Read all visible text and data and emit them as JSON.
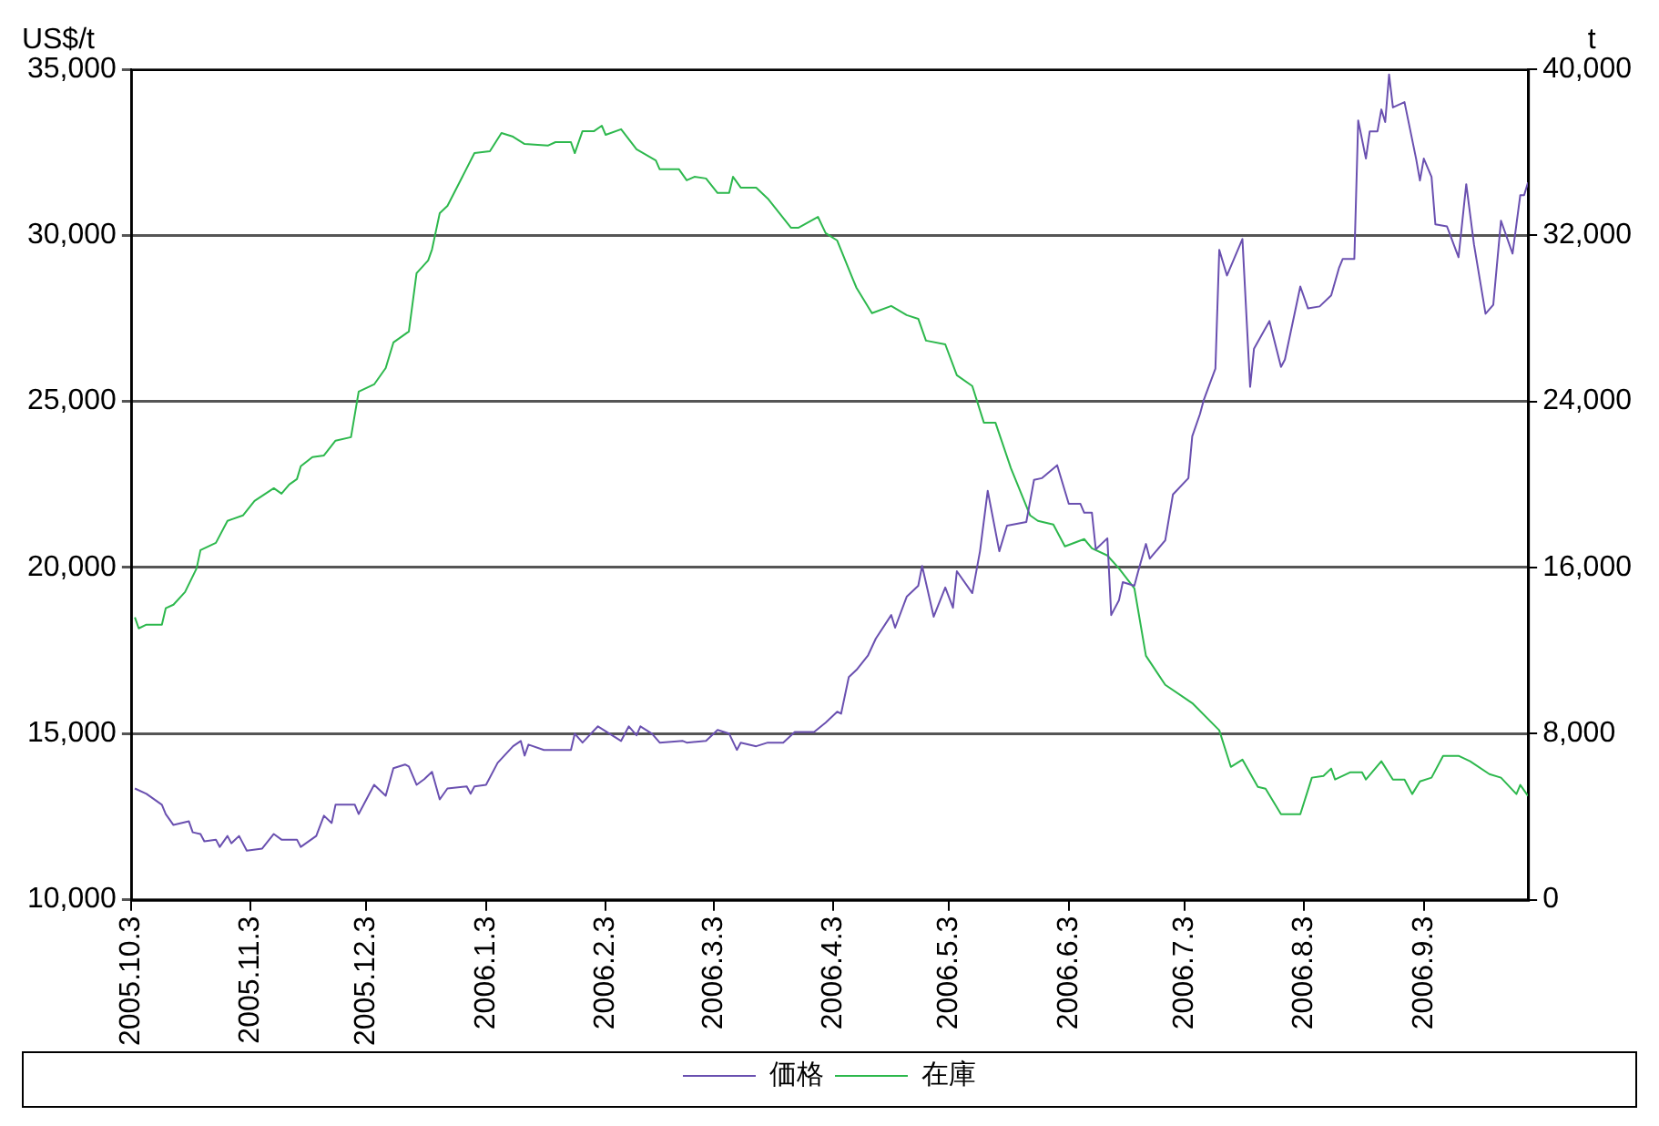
{
  "chart_data": {
    "type": "line",
    "ylabel": "US$/t",
    "y2label": "t",
    "xlim": [
      "2005-10-03",
      "2006-09-30"
    ],
    "xticks": [
      {
        "value": "2005-10-03",
        "label": "2005.10.3"
      },
      {
        "value": "2005-11-03",
        "label": "2005.11.3"
      },
      {
        "value": "2005-12-03",
        "label": "2005.12.3"
      },
      {
        "value": "2006-01-03",
        "label": "2006.1.3"
      },
      {
        "value": "2006-02-03",
        "label": "2006.2.3"
      },
      {
        "value": "2006-03-03",
        "label": "2006.3.3"
      },
      {
        "value": "2006-04-03",
        "label": "2006.4.3"
      },
      {
        "value": "2006-05-03",
        "label": "2006.5.3"
      },
      {
        "value": "2006-06-03",
        "label": "2006.6.3"
      },
      {
        "value": "2006-07-03",
        "label": "2006.7.3"
      },
      {
        "value": "2006-08-03",
        "label": "2006.8.3"
      },
      {
        "value": "2006-09-03",
        "label": "2006.9.3"
      }
    ],
    "ylim": [
      10000,
      35000
    ],
    "yticks": [
      {
        "value": 10000,
        "label": "10,000"
      },
      {
        "value": 15000,
        "label": "15,000"
      },
      {
        "value": 20000,
        "label": "20,000"
      },
      {
        "value": 25000,
        "label": "25,000"
      },
      {
        "value": 30000,
        "label": "30,000"
      },
      {
        "value": 35000,
        "label": "35,000"
      }
    ],
    "y2lim": [
      0,
      40000
    ],
    "y2ticks": [
      0,
      {
        "value": 8000,
        "label": "8,000"
      },
      {
        "value": 16000,
        "label": "16,000"
      },
      {
        "value": 24000,
        "label": "24,000"
      },
      {
        "value": 32000,
        "label": "32,000"
      },
      {
        "value": 40000,
        "label": "40,000"
      }
    ],
    "grid": "y",
    "legend": "bottom",
    "marker": "none",
    "line_style": "solid",
    "series": [
      {
        "name": "価格",
        "color": "#6a50b0",
        "x": [
          "2005-10-04",
          "2005-10-07",
          "2005-10-11",
          "2005-10-12",
          "2005-10-14",
          "2005-10-18",
          "2005-10-19",
          "2005-10-21",
          "2005-10-22",
          "2005-10-25",
          "2005-10-26",
          "2005-10-28",
          "2005-10-29",
          "2005-10-31",
          "2005-11-02",
          "2005-11-06",
          "2005-11-09",
          "2005-11-11",
          "2005-11-15",
          "2005-11-16",
          "2005-11-20",
          "2005-11-22",
          "2005-11-24",
          "2005-11-25",
          "2005-11-30",
          "2005-12-01",
          "2005-12-05",
          "2005-12-08",
          "2005-12-10",
          "2005-12-13",
          "2005-12-14",
          "2005-12-16",
          "2005-12-18",
          "2005-12-20",
          "2005-12-22",
          "2005-12-24",
          "2005-12-29",
          "2005-12-30",
          "2005-12-31",
          "2006-01-03",
          "2006-01-06",
          "2006-01-10",
          "2006-01-12",
          "2006-01-13",
          "2006-01-14",
          "2006-01-18",
          "2006-01-25",
          "2006-01-26",
          "2006-01-28",
          "2006-02-01",
          "2006-02-04",
          "2006-02-07",
          "2006-02-09",
          "2006-02-11",
          "2006-02-12",
          "2006-02-15",
          "2006-02-17",
          "2006-02-23",
          "2006-02-24",
          "2006-03-01",
          "2006-03-04",
          "2006-03-07",
          "2006-03-09",
          "2006-03-10",
          "2006-03-14",
          "2006-03-17",
          "2006-03-21",
          "2006-03-24",
          "2006-03-29",
          "2006-04-01",
          "2006-04-04",
          "2006-04-05",
          "2006-04-07",
          "2006-04-09",
          "2006-04-12",
          "2006-04-14",
          "2006-04-18",
          "2006-04-19",
          "2006-04-22",
          "2006-04-25",
          "2006-04-26",
          "2006-04-29",
          "2006-05-02",
          "2006-05-04",
          "2006-05-05",
          "2006-05-09",
          "2006-05-11",
          "2006-05-13",
          "2006-05-16",
          "2006-05-18",
          "2006-05-23",
          "2006-05-25",
          "2006-05-27",
          "2006-05-31",
          "2006-06-03",
          "2006-06-06",
          "2006-06-07",
          "2006-06-09",
          "2006-06-10",
          "2006-06-13",
          "2006-06-14",
          "2006-06-16",
          "2006-06-17",
          "2006-06-20",
          "2006-06-21",
          "2006-06-23",
          "2006-06-24",
          "2006-06-28",
          "2006-06-30",
          "2006-07-04",
          "2006-07-05",
          "2006-07-07",
          "2006-07-08",
          "2006-07-11",
          "2006-07-12",
          "2006-07-14",
          "2006-07-18",
          "2006-07-20",
          "2006-07-21",
          "2006-07-25",
          "2006-07-28",
          "2006-07-29",
          "2006-08-02",
          "2006-08-04",
          "2006-08-07",
          "2006-08-10",
          "2006-08-12",
          "2006-08-13",
          "2006-08-16",
          "2006-08-17",
          "2006-08-19",
          "2006-08-20",
          "2006-08-22",
          "2006-08-23",
          "2006-08-24",
          "2006-08-25",
          "2006-08-26",
          "2006-08-29",
          "2006-09-01",
          "2006-09-02",
          "2006-09-03",
          "2006-09-05",
          "2006-09-06",
          "2006-09-09",
          "2006-09-12",
          "2006-09-14",
          "2006-09-16",
          "2006-09-19",
          "2006-09-21",
          "2006-09-23",
          "2006-09-26",
          "2006-09-28",
          "2006-09-29",
          "2006-09-30"
        ],
        "values": [
          13350,
          13190,
          12860,
          12580,
          12250,
          12360,
          12030,
          11980,
          11760,
          11810,
          11590,
          11920,
          11700,
          11920,
          11480,
          11540,
          11980,
          11810,
          11810,
          11590,
          11920,
          12530,
          12310,
          12860,
          12860,
          12580,
          13460,
          13130,
          13960,
          14070,
          14010,
          13460,
          13630,
          13850,
          13020,
          13350,
          13410,
          13190,
          13410,
          13460,
          14120,
          14620,
          14780,
          14340,
          14670,
          14510,
          14510,
          15000,
          14730,
          15220,
          15000,
          14780,
          15220,
          14950,
          15220,
          15000,
          14730,
          14780,
          14730,
          14780,
          15110,
          15000,
          14510,
          14730,
          14620,
          14730,
          14730,
          15050,
          15050,
          15330,
          15660,
          15600,
          16700,
          16920,
          17360,
          17860,
          18570,
          18190,
          19120,
          19450,
          20050,
          18520,
          19400,
          18790,
          19890,
          19230,
          20490,
          22310,
          20490,
          21260,
          21370,
          22640,
          22690,
          23080,
          21920,
          21920,
          21650,
          21650,
          20550,
          20880,
          18570,
          19010,
          19560,
          19450,
          19890,
          20710,
          20270,
          20820,
          22200,
          22690,
          23950,
          24620,
          25050,
          25990,
          29560,
          28790,
          29890,
          25440,
          26590,
          27420,
          26040,
          26260,
          28460,
          27800,
          27860,
          28190,
          29010,
          29290,
          29290,
          33460,
          32310,
          33130,
          33130,
          33790,
          33410,
          34840,
          33850,
          34010,
          32310,
          31650,
          32310,
          31760,
          30330,
          30270,
          29340,
          31540,
          29730,
          27640,
          27910,
          30440,
          29450,
          31210,
          31210,
          31590
        ]
      },
      {
        "name": "在庫",
        "color": "#2db84d",
        "axis": "y2",
        "x": [
          "2005-10-04",
          "2005-10-05",
          "2005-10-07",
          "2005-10-11",
          "2005-10-12",
          "2005-10-14",
          "2005-10-17",
          "2005-10-20",
          "2005-10-21",
          "2005-10-25",
          "2005-10-28",
          "2005-11-01",
          "2005-11-04",
          "2005-11-09",
          "2005-11-11",
          "2005-11-13",
          "2005-11-15",
          "2005-11-16",
          "2005-11-19",
          "2005-11-22",
          "2005-11-25",
          "2005-11-29",
          "2005-12-01",
          "2005-12-05",
          "2005-12-08",
          "2005-12-10",
          "2005-12-14",
          "2005-12-16",
          "2005-12-19",
          "2005-12-20",
          "2005-12-22",
          "2005-12-24",
          "2005-12-31",
          "2006-01-04",
          "2006-01-07",
          "2006-01-10",
          "2006-01-13",
          "2006-01-19",
          "2006-01-21",
          "2006-01-25",
          "2006-01-26",
          "2006-01-28",
          "2006-01-31",
          "2006-02-02",
          "2006-02-03",
          "2006-02-07",
          "2006-02-11",
          "2006-02-16",
          "2006-02-17",
          "2006-02-22",
          "2006-02-24",
          "2006-02-26",
          "2006-03-01",
          "2006-03-04",
          "2006-03-07",
          "2006-03-08",
          "2006-03-10",
          "2006-03-14",
          "2006-03-17",
          "2006-03-20",
          "2006-03-23",
          "2006-03-25",
          "2006-03-30",
          "2006-04-01",
          "2006-04-04",
          "2006-04-08",
          "2006-04-09",
          "2006-04-13",
          "2006-04-18",
          "2006-04-22",
          "2006-04-25",
          "2006-04-27",
          "2006-05-02",
          "2006-05-05",
          "2006-05-09",
          "2006-05-12",
          "2006-05-15",
          "2006-05-19",
          "2006-05-24",
          "2006-05-26",
          "2006-05-30",
          "2006-06-02",
          "2006-06-07",
          "2006-06-09",
          "2006-06-13",
          "2006-06-16",
          "2006-06-20",
          "2006-06-23",
          "2006-06-28",
          "2006-07-05",
          "2006-07-12",
          "2006-07-15",
          "2006-07-18",
          "2006-07-22",
          "2006-07-24",
          "2006-07-28",
          "2006-08-02",
          "2006-08-05",
          "2006-08-08",
          "2006-08-10",
          "2006-08-11",
          "2006-08-15",
          "2006-08-18",
          "2006-08-19",
          "2006-08-23",
          "2006-08-26",
          "2006-08-29",
          "2006-08-31",
          "2006-09-02",
          "2006-09-05",
          "2006-09-08",
          "2006-09-12",
          "2006-09-15",
          "2006-09-20",
          "2006-09-23",
          "2006-09-27",
          "2006-09-28",
          "2006-09-30"
        ],
        "values": [
          13600,
          13070,
          13250,
          13250,
          14040,
          14210,
          14820,
          15960,
          16840,
          17190,
          18250,
          18510,
          19210,
          19820,
          19560,
          20000,
          20260,
          20880,
          21320,
          21400,
          22110,
          22280,
          24470,
          24820,
          25610,
          26840,
          27370,
          30180,
          30790,
          31320,
          33070,
          33420,
          35960,
          36050,
          36930,
          36750,
          36400,
          36320,
          36490,
          36490,
          35960,
          37020,
          37020,
          37280,
          36840,
          37110,
          36140,
          35610,
          35180,
          35180,
          34650,
          34820,
          34740,
          34040,
          34040,
          34820,
          34300,
          34300,
          33770,
          33070,
          32370,
          32370,
          32890,
          32110,
          31750,
          29910,
          29470,
          28250,
          28600,
          28160,
          27980,
          26930,
          26750,
          25260,
          24740,
          22980,
          22980,
          20790,
          18510,
          18250,
          18070,
          17020,
          17370,
          16930,
          16580,
          15960,
          15000,
          11750,
          10350,
          9470,
          8160,
          6400,
          6750,
          5440,
          5350,
          4120,
          4120,
          5880,
          5960,
          6320,
          5790,
          6140,
          6140,
          5790,
          6670,
          5790,
          5790,
          5090,
          5700,
          5880,
          6930,
          6930,
          6670,
          6050,
          5880,
          5090,
          5530,
          5000
        ]
      }
    ]
  }
}
